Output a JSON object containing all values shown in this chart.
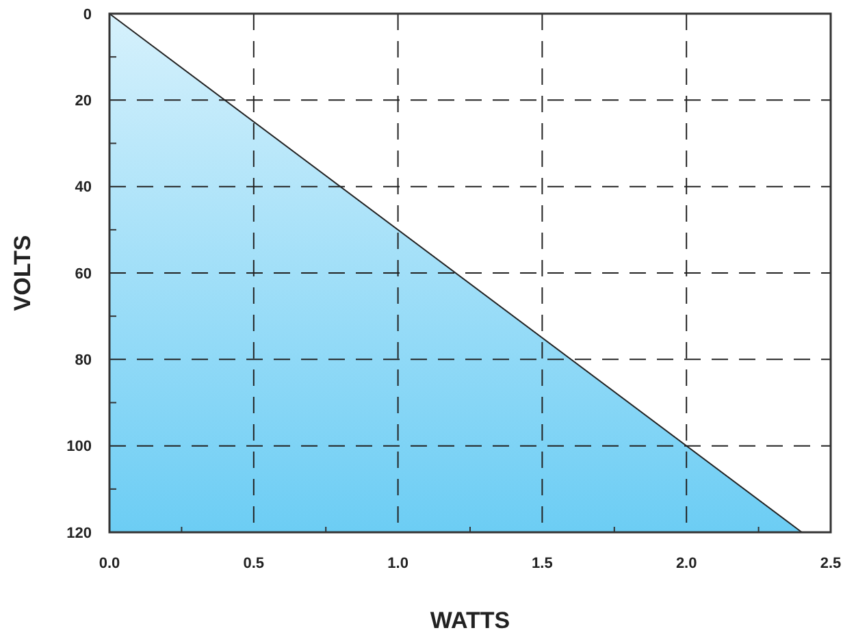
{
  "chart_data": {
    "type": "area",
    "xlabel": "WATTS",
    "ylabel": "VOLTS",
    "x": [
      0,
      2.4
    ],
    "values": [
      0,
      120
    ],
    "color": "#6ccdf4",
    "xlim": [
      0,
      2.5
    ],
    "ylim": [
      120,
      0
    ],
    "xticks": [
      {
        "value": 0,
        "label": "0.0"
      },
      {
        "value": 0.25,
        "label": null
      },
      {
        "value": 0.5,
        "label": "0.5"
      },
      {
        "value": 0.75,
        "label": null
      },
      {
        "value": 1,
        "label": "1.0"
      },
      {
        "value": 1.25,
        "label": null
      },
      {
        "value": 1.5,
        "label": "1.5"
      },
      {
        "value": 1.75,
        "label": null
      },
      {
        "value": 2,
        "label": "2.0"
      },
      {
        "value": 2.25,
        "label": null
      },
      {
        "value": 2.5,
        "label": "2.5"
      }
    ],
    "yticks": [
      0,
      {
        "value": 10,
        "label": null
      },
      20,
      {
        "value": 30,
        "label": null
      },
      40,
      {
        "value": 50,
        "label": null
      },
      60,
      {
        "value": 70,
        "label": null
      },
      80,
      {
        "value": 90,
        "label": null
      },
      100,
      {
        "value": 110,
        "label": null
      },
      120
    ],
    "grid": true
  }
}
